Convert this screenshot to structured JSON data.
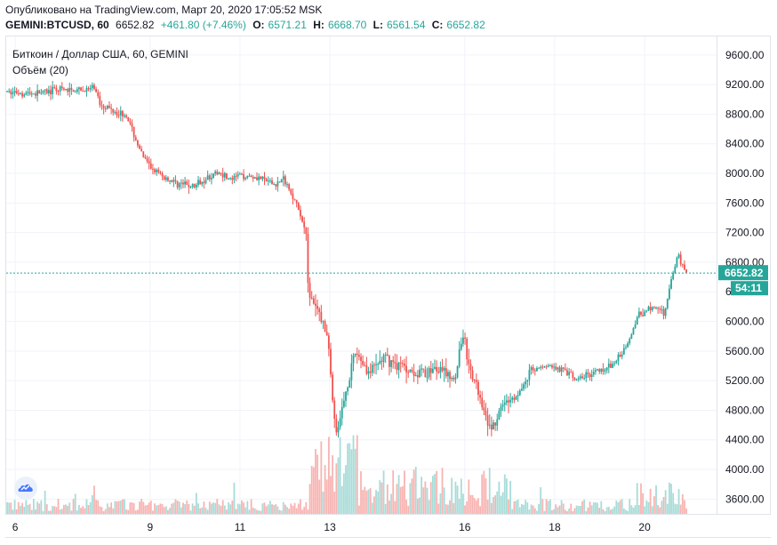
{
  "header": {
    "published": "Опубликовано на TradingView.com, Март 20, 2020 17:05:52 MSK",
    "symbol": "GEMINI:BTCUSD, 60",
    "last": "6652.82",
    "change": "+461.80 (+7.46%)",
    "o_label": "O:",
    "o_value": "6571.21",
    "h_label": "H:",
    "h_value": "6668.70",
    "l_label": "L:",
    "l_value": "6561.54",
    "c_label": "C:",
    "c_value": "6652.82"
  },
  "legend": {
    "series": "Биткоин / Доллар США, 60, GEMINI",
    "volume": "Объём (20)"
  },
  "price_tag": "6652.82",
  "countdown_tag": "54:11",
  "logo_icon": "tradingview-cloud-icon",
  "colors": {
    "up": "#26a69a",
    "down": "#ef5350",
    "vol_up": "#a8dcd8",
    "vol_down": "#f7b4b2",
    "price_line": "#26a69a"
  },
  "chart_data": {
    "type": "candlestick",
    "y_ticks": [
      "9600.00",
      "9200.00",
      "8800.00",
      "8400.00",
      "8000.00",
      "7600.00",
      "7200.00",
      "6800.00",
      "6400.00",
      "6000.00",
      "5600.00",
      "5200.00",
      "4800.00",
      "4400.00",
      "4000.00",
      "3600.00"
    ],
    "ylim": [
      3400,
      9850
    ],
    "x_ticks": [
      "6",
      "9",
      "11",
      "13",
      "16",
      "18",
      "20"
    ],
    "xlim": [
      5.8,
      21.6
    ],
    "current_price": 6652.82,
    "trend": [
      [
        5.8,
        9100
      ],
      [
        6.5,
        9080
      ],
      [
        7.0,
        9130
      ],
      [
        7.5,
        9110
      ],
      [
        7.8,
        9150
      ],
      [
        7.9,
        8950
      ],
      [
        8.1,
        8880
      ],
      [
        8.5,
        8780
      ],
      [
        8.8,
        8300
      ],
      [
        9.0,
        8100
      ],
      [
        9.3,
        7950
      ],
      [
        9.6,
        7870
      ],
      [
        10.0,
        7820
      ],
      [
        10.3,
        7950
      ],
      [
        10.6,
        8020
      ],
      [
        10.8,
        7900
      ],
      [
        11.0,
        7980
      ],
      [
        11.4,
        7950
      ],
      [
        11.8,
        7850
      ],
      [
        12.0,
        7920
      ],
      [
        12.2,
        7700
      ],
      [
        12.5,
        7200
      ],
      [
        12.55,
        6300
      ],
      [
        12.8,
        6100
      ],
      [
        13.0,
        5700
      ],
      [
        13.1,
        4700
      ],
      [
        13.2,
        4500
      ],
      [
        13.35,
        5000
      ],
      [
        13.6,
        5600
      ],
      [
        13.9,
        5300
      ],
      [
        14.2,
        5500
      ],
      [
        14.6,
        5400
      ],
      [
        15.0,
        5300
      ],
      [
        15.4,
        5350
      ],
      [
        15.8,
        5250
      ],
      [
        16.0,
        5900
      ],
      [
        16.1,
        5350
      ],
      [
        16.3,
        5100
      ],
      [
        16.5,
        4750
      ],
      [
        16.6,
        4500
      ],
      [
        16.9,
        4900
      ],
      [
        17.2,
        5000
      ],
      [
        17.5,
        5350
      ],
      [
        17.9,
        5400
      ],
      [
        18.2,
        5350
      ],
      [
        18.5,
        5200
      ],
      [
        18.9,
        5320
      ],
      [
        19.3,
        5400
      ],
      [
        19.6,
        5650
      ],
      [
        19.9,
        6100
      ],
      [
        20.2,
        6200
      ],
      [
        20.45,
        6100
      ],
      [
        20.6,
        6500
      ],
      [
        20.75,
        6900
      ],
      [
        20.95,
        6652.82
      ]
    ]
  }
}
